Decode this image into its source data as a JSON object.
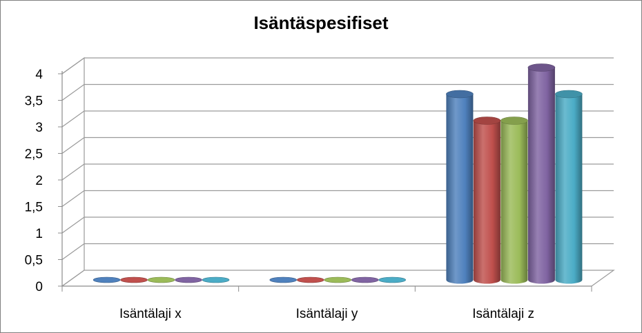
{
  "chart_data": {
    "type": "bar",
    "title": "Isäntäspesifiset",
    "categories": [
      "Isäntälaji x",
      "Isäntälaji y",
      "Isäntälaji z"
    ],
    "series": [
      {
        "color": "#4f81bd",
        "values": [
          0,
          0,
          3.5
        ]
      },
      {
        "color": "#c0504d",
        "values": [
          0,
          0,
          3
        ]
      },
      {
        "color": "#9bbb59",
        "values": [
          0,
          0,
          3
        ]
      },
      {
        "color": "#8064a2",
        "values": [
          0,
          0,
          4
        ]
      },
      {
        "color": "#4bacc6",
        "values": [
          0,
          0,
          3.5
        ]
      }
    ],
    "y_ticks": [
      "0",
      "0,5",
      "1",
      "1,5",
      "2",
      "2,5",
      "3",
      "3,5",
      "4"
    ],
    "ylim": [
      0,
      4
    ],
    "xlabel": "",
    "ylabel": "",
    "grid": true,
    "legend": "none",
    "style": "3d-cylinder"
  }
}
